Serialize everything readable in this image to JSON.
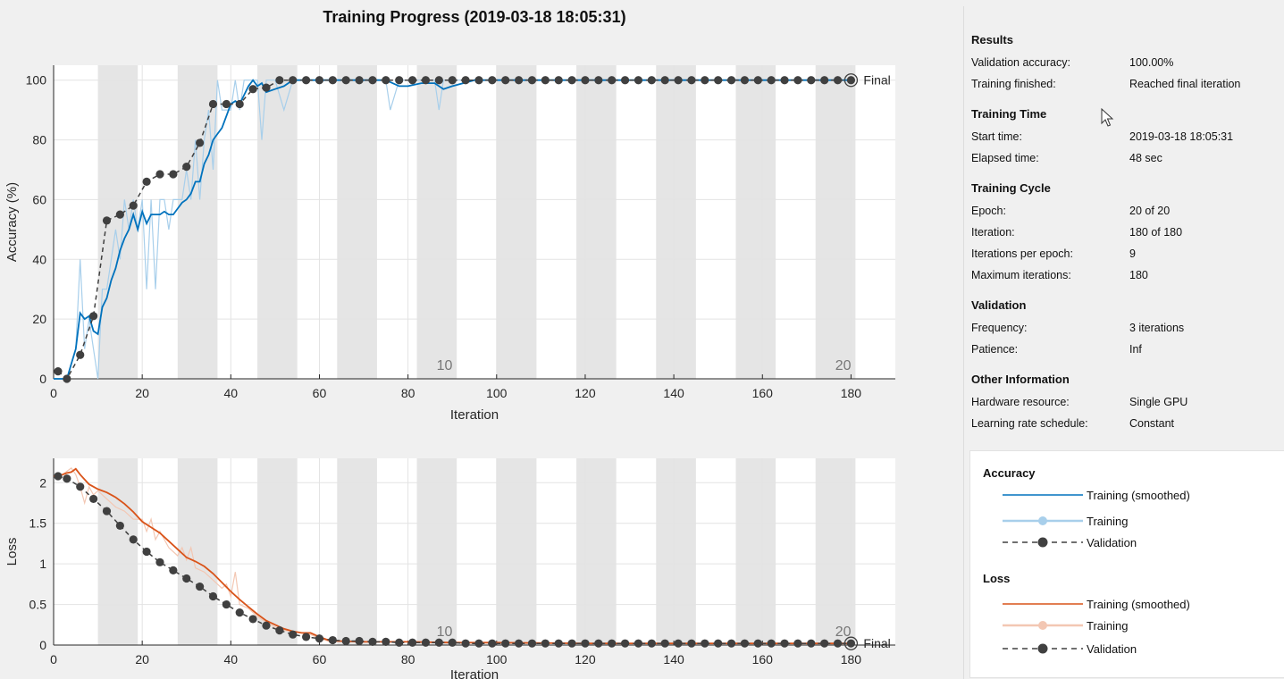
{
  "window": {
    "title": "Training Progress (2019-03-18 18:05:31)"
  },
  "results": {
    "section_title": "Results",
    "rows": [
      {
        "label": "Validation accuracy:",
        "value": "100.00%"
      },
      {
        "label": "Training finished:",
        "value": "Reached final iteration"
      }
    ]
  },
  "training_time": {
    "section_title": "Training Time",
    "rows": [
      {
        "label": "Start time:",
        "value": "2019-03-18 18:05:31"
      },
      {
        "label": "Elapsed time:",
        "value": "48 sec"
      }
    ]
  },
  "training_cycle": {
    "section_title": "Training Cycle",
    "rows": [
      {
        "label": "Epoch:",
        "value": "20 of 20"
      },
      {
        "label": "Iteration:",
        "value": "180 of 180"
      },
      {
        "label": "Iterations per epoch:",
        "value": "9"
      },
      {
        "label": "Maximum iterations:",
        "value": "180"
      }
    ]
  },
  "validation": {
    "section_title": "Validation",
    "rows": [
      {
        "label": "Frequency:",
        "value": "3 iterations"
      },
      {
        "label": "Patience:",
        "value": "Inf"
      }
    ]
  },
  "other_information": {
    "section_title": "Other Information",
    "rows": [
      {
        "label": "Hardware resource:",
        "value": "Single GPU"
      },
      {
        "label": "Learning rate schedule:",
        "value": "Constant"
      }
    ]
  },
  "legend": {
    "accuracy_title": "Accuracy",
    "loss_title": "Loss",
    "training_smoothed": "Training (smoothed)",
    "training": "Training",
    "validation": "Validation"
  },
  "colors": {
    "accuracy_smoothed": "#0072bd",
    "accuracy_raw": "#a8cfeb",
    "loss_smoothed": "#d95319",
    "loss_raw": "#f3c7b3",
    "validation": "#404040",
    "epoch_band": "#e5e5e5",
    "plot_background": "#ffffff",
    "grid": "#e3e3e3"
  },
  "chart_data": [
    {
      "type": "line",
      "title": "Training Progress (2019-03-18 18:05:31)",
      "xlabel": "Iteration",
      "ylabel": "Accuracy (%)",
      "xlim": [
        0,
        190
      ],
      "ylim": [
        0,
        105
      ],
      "xticks": [
        0,
        20,
        40,
        60,
        80,
        100,
        120,
        140,
        160,
        180
      ],
      "yticks": [
        0,
        20,
        40,
        60,
        80,
        100
      ],
      "grid": true,
      "epoch_labels": [
        {
          "x": 84,
          "label": "10"
        },
        {
          "x": 174,
          "label": "20"
        }
      ],
      "final_label": "Final",
      "series": [
        {
          "name": "Training (smoothed)",
          "x": [
            0,
            3,
            4,
            5,
            6,
            7,
            8,
            9,
            10,
            11,
            12,
            13,
            14,
            15,
            16,
            17,
            18,
            19,
            20,
            21,
            22,
            23,
            24,
            25,
            26,
            27,
            28,
            29,
            30,
            31,
            32,
            33,
            34,
            35,
            36,
            37,
            38,
            39,
            40,
            41,
            42,
            43,
            44,
            45,
            46,
            47,
            48,
            50,
            52,
            54,
            56,
            60,
            65,
            70,
            75,
            78,
            80,
            83,
            86,
            88,
            90,
            95,
            100,
            120,
            140,
            160,
            180
          ],
          "y": [
            0,
            0,
            5,
            10,
            22,
            20,
            21,
            16,
            15,
            24,
            27,
            33,
            37,
            43,
            47,
            50,
            55,
            50,
            56,
            52,
            55,
            55,
            55,
            56,
            55,
            55,
            57,
            59,
            60,
            62,
            66,
            66,
            72,
            75,
            80,
            82,
            84,
            88,
            92,
            93,
            92,
            95,
            98,
            100,
            98,
            99,
            96,
            97,
            98,
            100,
            100,
            100,
            100,
            100,
            100,
            98,
            98,
            99,
            99,
            97,
            98,
            100,
            100,
            100,
            100,
            100,
            100
          ]
        },
        {
          "name": "Training",
          "x": [
            0,
            3,
            4,
            5,
            6,
            7,
            8,
            9,
            10,
            11,
            12,
            13,
            14,
            15,
            16,
            17,
            18,
            19,
            20,
            21,
            22,
            23,
            24,
            25,
            26,
            27,
            28,
            29,
            30,
            31,
            32,
            33,
            34,
            35,
            36,
            37,
            38,
            39,
            40,
            41,
            42,
            43,
            44,
            45,
            46,
            47,
            48,
            50,
            52,
            54,
            56,
            60,
            75,
            76,
            78,
            80,
            86,
            87,
            88,
            90,
            100,
            120,
            140,
            160,
            180
          ],
          "y": [
            0,
            0,
            5,
            10,
            40,
            10,
            20,
            10,
            0,
            30,
            30,
            40,
            50,
            40,
            60,
            50,
            60,
            50,
            60,
            30,
            60,
            30,
            60,
            60,
            50,
            60,
            60,
            60,
            70,
            60,
            80,
            60,
            80,
            90,
            70,
            100,
            90,
            90,
            90,
            100,
            90,
            100,
            100,
            100,
            100,
            80,
            100,
            100,
            90,
            100,
            100,
            100,
            100,
            90,
            100,
            100,
            100,
            90,
            100,
            100,
            100,
            100,
            100,
            100,
            100
          ]
        },
        {
          "name": "Validation",
          "x": [
            1,
            3,
            6,
            9,
            12,
            15,
            18,
            21,
            24,
            27,
            30,
            33,
            36,
            39,
            42,
            45,
            48,
            51,
            54,
            57,
            60,
            63,
            66,
            69,
            72,
            75,
            78,
            81,
            84,
            87,
            90,
            93,
            96,
            99,
            102,
            105,
            108,
            111,
            114,
            117,
            120,
            123,
            126,
            129,
            132,
            135,
            138,
            141,
            144,
            147,
            150,
            153,
            156,
            159,
            162,
            165,
            168,
            171,
            174,
            177,
            180
          ],
          "y": [
            2.5,
            0,
            8,
            21,
            53,
            55,
            58,
            66,
            68.5,
            68.5,
            71,
            79,
            92,
            92,
            92,
            97,
            97.5,
            100,
            100,
            100,
            100,
            100,
            100,
            100,
            100,
            100,
            100,
            100,
            100,
            100,
            100,
            100,
            100,
            100,
            100,
            100,
            100,
            100,
            100,
            100,
            100,
            100,
            100,
            100,
            100,
            100,
            100,
            100,
            100,
            100,
            100,
            100,
            100,
            100,
            100,
            100,
            100,
            100,
            100,
            100,
            100
          ]
        }
      ]
    },
    {
      "type": "line",
      "xlabel": "Iteration",
      "ylabel": "Loss",
      "xlim": [
        0,
        190
      ],
      "ylim": [
        0,
        2.3
      ],
      "xticks": [
        0,
        20,
        40,
        60,
        80,
        100,
        120,
        140,
        160,
        180
      ],
      "yticks": [
        0,
        0.5,
        1,
        1.5,
        2
      ],
      "ytick_labels": [
        "0",
        "0.5",
        "1",
        "1.5",
        "2"
      ],
      "grid": true,
      "epoch_labels": [
        {
          "x": 84,
          "label": "10"
        },
        {
          "x": 174,
          "label": "20"
        }
      ],
      "final_label": "Final",
      "series": [
        {
          "name": "Training (smoothed)",
          "x": [
            0,
            2,
            3,
            4,
            5,
            6,
            8,
            10,
            12,
            14,
            16,
            18,
            20,
            22,
            24,
            26,
            28,
            30,
            32,
            34,
            36,
            38,
            40,
            42,
            44,
            46,
            48,
            50,
            52,
            54,
            56,
            58,
            60,
            62,
            64,
            70,
            80,
            90,
            100,
            120,
            140,
            160,
            180
          ],
          "y": [
            2.08,
            2.1,
            2.12,
            2.13,
            2.17,
            2.1,
            1.98,
            1.92,
            1.88,
            1.82,
            1.74,
            1.64,
            1.52,
            1.45,
            1.38,
            1.28,
            1.18,
            1.08,
            1.03,
            0.97,
            0.88,
            0.77,
            0.66,
            0.56,
            0.47,
            0.38,
            0.3,
            0.25,
            0.2,
            0.17,
            0.15,
            0.15,
            0.1,
            0.06,
            0.05,
            0.04,
            0.04,
            0.03,
            0.03,
            0.02,
            0.02,
            0.02,
            0.02
          ]
        },
        {
          "name": "Training",
          "x": [
            0,
            2,
            4,
            5,
            6,
            7,
            8,
            9,
            10,
            12,
            14,
            16,
            18,
            20,
            21,
            22,
            23,
            24,
            26,
            28,
            29,
            30,
            31,
            32,
            34,
            36,
            38,
            39,
            40,
            41,
            42,
            44,
            46,
            48,
            50,
            52,
            55,
            58,
            60,
            62,
            65,
            70,
            80,
            100,
            120,
            140,
            160,
            180
          ],
          "y": [
            2.08,
            2.1,
            2.18,
            2.1,
            1.95,
            1.75,
            1.95,
            1.85,
            1.9,
            1.8,
            1.7,
            1.65,
            1.55,
            1.55,
            1.4,
            1.55,
            1.3,
            1.4,
            1.2,
            1.1,
            1.2,
            1.05,
            1.2,
            0.95,
            0.9,
            0.8,
            0.7,
            0.75,
            0.6,
            0.9,
            0.5,
            0.45,
            0.35,
            0.28,
            0.22,
            0.18,
            0.16,
            0.13,
            0.08,
            0.05,
            0.05,
            0.04,
            0.04,
            0.03,
            0.02,
            0.02,
            0.02,
            0.02
          ]
        },
        {
          "name": "Validation",
          "x": [
            1,
            3,
            6,
            9,
            12,
            15,
            18,
            21,
            24,
            27,
            30,
            33,
            36,
            39,
            42,
            45,
            48,
            51,
            54,
            57,
            60,
            63,
            66,
            69,
            72,
            75,
            78,
            81,
            84,
            87,
            90,
            93,
            96,
            99,
            102,
            105,
            108,
            111,
            114,
            117,
            120,
            123,
            126,
            129,
            132,
            135,
            138,
            141,
            144,
            147,
            150,
            153,
            156,
            159,
            162,
            165,
            168,
            171,
            174,
            177,
            180
          ],
          "y": [
            2.08,
            2.05,
            1.95,
            1.8,
            1.65,
            1.47,
            1.3,
            1.15,
            1.02,
            0.92,
            0.82,
            0.72,
            0.6,
            0.5,
            0.4,
            0.32,
            0.24,
            0.18,
            0.13,
            0.1,
            0.08,
            0.06,
            0.05,
            0.05,
            0.04,
            0.04,
            0.03,
            0.03,
            0.03,
            0.03,
            0.03,
            0.02,
            0.02,
            0.02,
            0.02,
            0.02,
            0.02,
            0.02,
            0.02,
            0.02,
            0.02,
            0.02,
            0.02,
            0.02,
            0.02,
            0.02,
            0.02,
            0.02,
            0.02,
            0.02,
            0.02,
            0.02,
            0.02,
            0.02,
            0.02,
            0.02,
            0.02,
            0.02,
            0.02,
            0.02,
            0.02
          ]
        }
      ]
    }
  ]
}
